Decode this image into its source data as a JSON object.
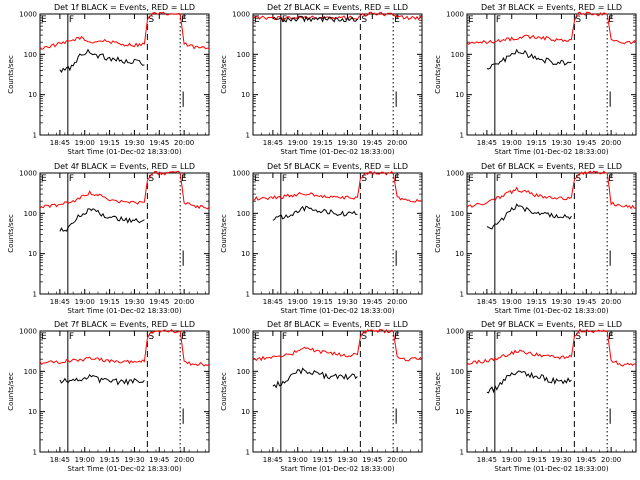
{
  "chart_data": [
    {
      "type": "line",
      "title": "Det 1f BLACK = Events, RED = LLD",
      "xlabel": "Start Time (01-Dec-02 18:33:00)",
      "ylabel": "Counts/sec",
      "x_ticks": [
        "18:45",
        "19:00",
        "19:15",
        "19:30",
        "19:45",
        "20:00"
      ],
      "x_tick_hours": [
        0.2,
        0.45,
        0.7,
        0.95,
        1.2,
        1.45
      ],
      "xlim_hours": [
        0,
        1.7
      ],
      "y_ticks": [
        "1",
        "10",
        "100",
        "1000"
      ],
      "y_tick_values": [
        1,
        10,
        100,
        1000
      ],
      "ylim": [
        1,
        1000
      ],
      "y_scale": "log",
      "markers": [
        {
          "label": "E",
          "x": 0.0,
          "style": "dotted"
        },
        {
          "label": "F",
          "x": 0.28,
          "style": "solid"
        },
        {
          "label": "S",
          "x": 1.08,
          "style": "dashed"
        },
        {
          "label": "E",
          "x": 1.41,
          "style": "dotted"
        }
      ],
      "series": [
        {
          "name": "LLD",
          "color": "#ff0000",
          "x": [
            0,
            0.1,
            0.25,
            0.4,
            0.5,
            0.65,
            0.8,
            0.95,
            1.05,
            1.08,
            1.12,
            1.41,
            1.45,
            1.55,
            1.7
          ],
          "values": [
            140,
            160,
            190,
            260,
            200,
            220,
            180,
            170,
            180,
            700,
            1000,
            1000,
            180,
            150,
            140
          ]
        },
        {
          "name": "Events",
          "color": "#000000",
          "x": [
            0.2,
            0.3,
            0.4,
            0.5,
            0.6,
            0.7,
            0.8,
            0.9,
            1.0,
            1.05
          ],
          "values": [
            38,
            45,
            90,
            120,
            90,
            80,
            75,
            60,
            70,
            55
          ]
        }
      ]
    },
    {
      "type": "line",
      "title": "Det 2f BLACK = Events, RED = LLD",
      "xlabel": "Start Time (01-Dec-02 18:33:00)",
      "ylabel": "Counts/sec",
      "x_ticks": [
        "18:45",
        "19:00",
        "19:15",
        "19:30",
        "19:45",
        "20:00"
      ],
      "x_tick_hours": [
        0.2,
        0.45,
        0.7,
        0.95,
        1.2,
        1.45
      ],
      "xlim_hours": [
        0,
        1.7
      ],
      "y_ticks": [
        "1",
        "10",
        "100",
        "1000"
      ],
      "y_tick_values": [
        1,
        10,
        100,
        1000
      ],
      "ylim": [
        1,
        1000
      ],
      "y_scale": "log",
      "markers": [
        {
          "label": "E",
          "x": 0.0,
          "style": "dotted"
        },
        {
          "label": "F",
          "x": 0.28,
          "style": "solid"
        },
        {
          "label": "S",
          "x": 1.08,
          "style": "dashed"
        },
        {
          "label": "E",
          "x": 1.41,
          "style": "dotted"
        }
      ],
      "series": [
        {
          "name": "LLD",
          "color": "#ff0000",
          "x": [
            0,
            0.2,
            0.5,
            0.8,
            1.05,
            1.08,
            1.12,
            1.41,
            1.45,
            1.55,
            1.7
          ],
          "values": [
            800,
            800,
            800,
            800,
            800,
            900,
            1000,
            1000,
            900,
            800,
            800
          ]
        },
        {
          "name": "Events",
          "color": "#000000",
          "x": [
            0.2,
            0.5,
            0.8,
            1.05
          ],
          "values": [
            750,
            750,
            750,
            750
          ]
        }
      ]
    },
    {
      "type": "line",
      "title": "Det 3f BLACK = Events, RED = LLD",
      "xlabel": "Start Time (01-Dec-02 18:33:00)",
      "ylabel": "Counts/sec",
      "x_ticks": [
        "18:45",
        "19:00",
        "19:15",
        "19:30",
        "19:45",
        "20:00"
      ],
      "x_tick_hours": [
        0.2,
        0.45,
        0.7,
        0.95,
        1.2,
        1.45
      ],
      "xlim_hours": [
        0,
        1.7
      ],
      "y_ticks": [
        "1",
        "10",
        "100",
        "1000"
      ],
      "y_tick_values": [
        1,
        10,
        100,
        1000
      ],
      "ylim": [
        1,
        1000
      ],
      "y_scale": "log",
      "markers": [
        {
          "label": "E",
          "x": 0.0,
          "style": "dotted"
        },
        {
          "label": "F",
          "x": 0.28,
          "style": "solid"
        },
        {
          "label": "S",
          "x": 1.08,
          "style": "dashed"
        },
        {
          "label": "E",
          "x": 1.41,
          "style": "dotted"
        }
      ],
      "series": [
        {
          "name": "LLD",
          "color": "#ff0000",
          "x": [
            0,
            0.2,
            0.4,
            0.6,
            0.8,
            0.95,
            1.05,
            1.08,
            1.12,
            1.41,
            1.45,
            1.55,
            1.7
          ],
          "values": [
            190,
            200,
            230,
            270,
            250,
            220,
            230,
            700,
            1000,
            1000,
            230,
            200,
            200
          ]
        },
        {
          "name": "Events",
          "color": "#000000",
          "x": [
            0.2,
            0.3,
            0.4,
            0.5,
            0.6,
            0.7,
            0.8,
            0.9,
            1.05
          ],
          "values": [
            45,
            55,
            80,
            130,
            100,
            85,
            70,
            60,
            65
          ]
        }
      ]
    },
    {
      "type": "line",
      "title": "Det 4f BLACK = Events, RED = LLD",
      "xlabel": "Start Time (01-Dec-02 18:33:00)",
      "ylabel": "Counts/sec",
      "x_ticks": [
        "18:45",
        "19:00",
        "19:15",
        "19:30",
        "19:45",
        "20:00"
      ],
      "x_tick_hours": [
        0.2,
        0.45,
        0.7,
        0.95,
        1.2,
        1.45
      ],
      "xlim_hours": [
        0,
        1.7
      ],
      "y_ticks": [
        "1",
        "10",
        "100",
        "1000"
      ],
      "y_tick_values": [
        1,
        10,
        100,
        1000
      ],
      "ylim": [
        1,
        1000
      ],
      "y_scale": "log",
      "markers": [
        {
          "label": "E",
          "x": 0.0,
          "style": "dotted"
        },
        {
          "label": "F",
          "x": 0.28,
          "style": "solid"
        },
        {
          "label": "S",
          "x": 1.08,
          "style": "dashed"
        },
        {
          "label": "E",
          "x": 1.41,
          "style": "dotted"
        }
      ],
      "series": [
        {
          "name": "LLD",
          "color": "#ff0000",
          "x": [
            0,
            0.2,
            0.4,
            0.5,
            0.7,
            0.9,
            1.05,
            1.08,
            1.12,
            1.41,
            1.45,
            1.55,
            1.7
          ],
          "values": [
            140,
            160,
            230,
            330,
            220,
            180,
            190,
            700,
            1000,
            1000,
            180,
            150,
            140
          ]
        },
        {
          "name": "Events",
          "color": "#000000",
          "x": [
            0.2,
            0.3,
            0.4,
            0.5,
            0.6,
            0.7,
            0.8,
            0.9,
            1.05
          ],
          "values": [
            38,
            45,
            90,
            130,
            95,
            85,
            75,
            65,
            70
          ]
        }
      ]
    },
    {
      "type": "line",
      "title": "Det 5f BLACK = Events, RED = LLD",
      "xlabel": "Start Time (01-Dec-02 18:33:00)",
      "ylabel": "Counts/sec",
      "x_ticks": [
        "18:45",
        "19:00",
        "19:15",
        "19:30",
        "19:45",
        "20:00"
      ],
      "x_tick_hours": [
        0.2,
        0.45,
        0.7,
        0.95,
        1.2,
        1.45
      ],
      "xlim_hours": [
        0,
        1.7
      ],
      "y_ticks": [
        "1",
        "10",
        "100",
        "1000"
      ],
      "y_tick_values": [
        1,
        10,
        100,
        1000
      ],
      "ylim": [
        1,
        1000
      ],
      "y_scale": "log",
      "markers": [
        {
          "label": "E",
          "x": 0.0,
          "style": "dotted"
        },
        {
          "label": "F",
          "x": 0.28,
          "style": "solid"
        },
        {
          "label": "S",
          "x": 1.08,
          "style": "dashed"
        },
        {
          "label": "E",
          "x": 1.41,
          "style": "dotted"
        }
      ],
      "series": [
        {
          "name": "LLD",
          "color": "#ff0000",
          "x": [
            0,
            0.2,
            0.4,
            0.5,
            0.7,
            0.9,
            1.05,
            1.08,
            1.12,
            1.41,
            1.45,
            1.55,
            1.7
          ],
          "values": [
            230,
            240,
            280,
            320,
            260,
            240,
            250,
            700,
            1000,
            1000,
            250,
            210,
            200
          ]
        },
        {
          "name": "Events",
          "color": "#000000",
          "x": [
            0.2,
            0.3,
            0.4,
            0.5,
            0.6,
            0.7,
            0.8,
            0.9,
            1.05
          ],
          "values": [
            75,
            80,
            100,
            140,
            120,
            110,
            105,
            100,
            95
          ]
        }
      ]
    },
    {
      "type": "line",
      "title": "Det 6f BLACK = Events, RED = LLD",
      "xlabel": "Start Time (01-Dec-02 18:33:00)",
      "ylabel": "Counts/sec",
      "x_ticks": [
        "18:45",
        "19:00",
        "19:15",
        "19:30",
        "19:45",
        "20:00"
      ],
      "x_tick_hours": [
        0.2,
        0.45,
        0.7,
        0.95,
        1.2,
        1.45
      ],
      "xlim_hours": [
        0,
        1.7
      ],
      "y_ticks": [
        "1",
        "10",
        "100",
        "1000"
      ],
      "y_tick_values": [
        1,
        10,
        100,
        1000
      ],
      "ylim": [
        1,
        1000
      ],
      "y_scale": "log",
      "markers": [
        {
          "label": "E",
          "x": 0.0,
          "style": "dotted"
        },
        {
          "label": "F",
          "x": 0.28,
          "style": "solid"
        },
        {
          "label": "S",
          "x": 1.08,
          "style": "dashed"
        },
        {
          "label": "E",
          "x": 1.41,
          "style": "dotted"
        }
      ],
      "series": [
        {
          "name": "LLD",
          "color": "#ff0000",
          "x": [
            0,
            0.2,
            0.4,
            0.5,
            0.7,
            0.9,
            1.05,
            1.08,
            1.12,
            1.41,
            1.45,
            1.55,
            1.7
          ],
          "values": [
            150,
            180,
            300,
            400,
            280,
            230,
            250,
            700,
            1000,
            1000,
            180,
            150,
            140
          ]
        },
        {
          "name": "Events",
          "color": "#000000",
          "x": [
            0.2,
            0.3,
            0.4,
            0.5,
            0.6,
            0.7,
            0.8,
            0.9,
            1.05
          ],
          "values": [
            40,
            50,
            100,
            160,
            120,
            100,
            90,
            80,
            85
          ]
        }
      ]
    },
    {
      "type": "line",
      "title": "Det 7f BLACK = Events, RED = LLD",
      "xlabel": "Start Time (01-Dec-02 18:33:00)",
      "ylabel": "Counts/sec",
      "x_ticks": [
        "18:45",
        "19:00",
        "19:15",
        "19:30",
        "19:45",
        "20:00"
      ],
      "x_tick_hours": [
        0.2,
        0.45,
        0.7,
        0.95,
        1.2,
        1.45
      ],
      "xlim_hours": [
        0,
        1.7
      ],
      "y_ticks": [
        "1",
        "10",
        "100",
        "1000"
      ],
      "y_tick_values": [
        1,
        10,
        100,
        1000
      ],
      "ylim": [
        1,
        1000
      ],
      "y_scale": "log",
      "markers": [
        {
          "label": "E",
          "x": 0.0,
          "style": "dotted"
        },
        {
          "label": "F",
          "x": 0.28,
          "style": "solid"
        },
        {
          "label": "S",
          "x": 1.08,
          "style": "dashed"
        },
        {
          "label": "E",
          "x": 1.41,
          "style": "dotted"
        }
      ],
      "series": [
        {
          "name": "LLD",
          "color": "#ff0000",
          "x": [
            0,
            0.2,
            0.4,
            0.5,
            0.7,
            0.9,
            1.05,
            1.08,
            1.12,
            1.41,
            1.45,
            1.55,
            1.7
          ],
          "values": [
            160,
            170,
            190,
            210,
            180,
            170,
            175,
            700,
            1000,
            1000,
            170,
            150,
            150
          ]
        },
        {
          "name": "Events",
          "color": "#000000",
          "x": [
            0.2,
            0.3,
            0.4,
            0.5,
            0.6,
            0.7,
            0.8,
            0.9,
            1.05
          ],
          "values": [
            55,
            58,
            65,
            75,
            62,
            58,
            55,
            55,
            60
          ]
        }
      ]
    },
    {
      "type": "line",
      "title": "Det 8f BLACK = Events, RED = LLD",
      "xlabel": "Start Time (01-Dec-02 18:33:00)",
      "ylabel": "Counts/sec",
      "x_ticks": [
        "18:45",
        "19:00",
        "19:15",
        "19:30",
        "19:45",
        "20:00"
      ],
      "x_tick_hours": [
        0.2,
        0.45,
        0.7,
        0.95,
        1.2,
        1.45
      ],
      "xlim_hours": [
        0,
        1.7
      ],
      "y_ticks": [
        "1",
        "10",
        "100",
        "1000"
      ],
      "y_tick_values": [
        1,
        10,
        100,
        1000
      ],
      "ylim": [
        1,
        1000
      ],
      "y_scale": "log",
      "markers": [
        {
          "label": "E",
          "x": 0.0,
          "style": "dotted"
        },
        {
          "label": "F",
          "x": 0.28,
          "style": "solid"
        },
        {
          "label": "S",
          "x": 1.08,
          "style": "dashed"
        },
        {
          "label": "E",
          "x": 1.41,
          "style": "dotted"
        }
      ],
      "series": [
        {
          "name": "LLD",
          "color": "#ff0000",
          "x": [
            0,
            0.2,
            0.4,
            0.5,
            0.7,
            0.9,
            1.05,
            1.08,
            1.12,
            1.41,
            1.45,
            1.55,
            1.7
          ],
          "values": [
            200,
            220,
            280,
            380,
            300,
            250,
            260,
            700,
            1000,
            1000,
            230,
            200,
            200
          ]
        },
        {
          "name": "Events",
          "color": "#000000",
          "x": [
            0.2,
            0.3,
            0.4,
            0.5,
            0.6,
            0.7,
            0.8,
            0.9,
            1.05
          ],
          "values": [
            40,
            55,
            80,
            110,
            90,
            80,
            75,
            70,
            75
          ]
        }
      ]
    },
    {
      "type": "line",
      "title": "Det 9f BLACK = Events, RED = LLD",
      "xlabel": "Start Time (01-Dec-02 18:33:00)",
      "ylabel": "Counts/sec",
      "x_ticks": [
        "18:45",
        "19:00",
        "19:15",
        "19:30",
        "19:45",
        "20:00"
      ],
      "x_tick_hours": [
        0.2,
        0.45,
        0.7,
        0.95,
        1.2,
        1.45
      ],
      "xlim_hours": [
        0,
        1.7
      ],
      "y_ticks": [
        "1",
        "10",
        "100",
        "1000"
      ],
      "y_tick_values": [
        1,
        10,
        100,
        1000
      ],
      "ylim": [
        1,
        1000
      ],
      "y_scale": "log",
      "markers": [
        {
          "label": "E",
          "x": 0.0,
          "style": "dotted"
        },
        {
          "label": "F",
          "x": 0.28,
          "style": "solid"
        },
        {
          "label": "S",
          "x": 1.08,
          "style": "dashed"
        },
        {
          "label": "E",
          "x": 1.41,
          "style": "dotted"
        }
      ],
      "series": [
        {
          "name": "LLD",
          "color": "#ff0000",
          "x": [
            0,
            0.2,
            0.4,
            0.5,
            0.7,
            0.9,
            1.05,
            1.08,
            1.12,
            1.41,
            1.45,
            1.55,
            1.7
          ],
          "values": [
            160,
            180,
            250,
            320,
            260,
            220,
            230,
            700,
            1000,
            1000,
            180,
            150,
            150
          ]
        },
        {
          "name": "Events",
          "color": "#000000",
          "x": [
            0.2,
            0.3,
            0.4,
            0.5,
            0.6,
            0.7,
            0.8,
            0.9,
            1.05
          ],
          "values": [
            30,
            40,
            70,
            100,
            85,
            75,
            65,
            55,
            60
          ]
        }
      ]
    }
  ]
}
